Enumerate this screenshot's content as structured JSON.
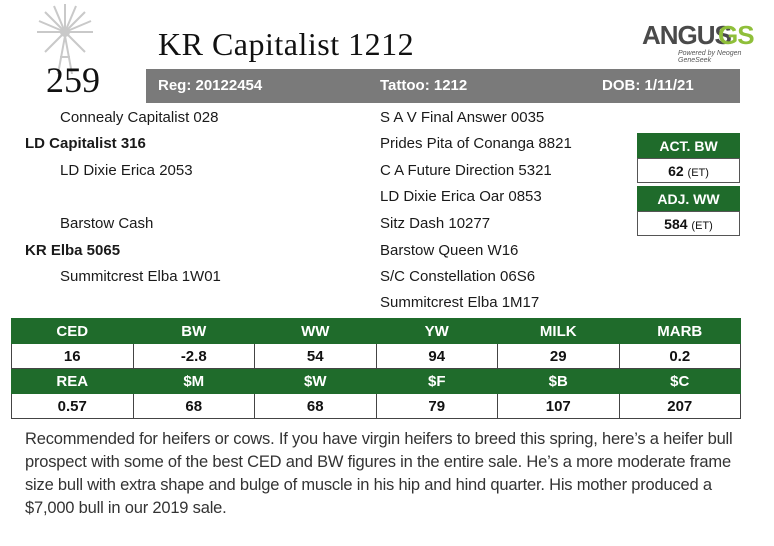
{
  "lot_number": "259",
  "title": "KR Capitalist 1212",
  "logo": {
    "word": "ANGUS",
    "suffix": "GS",
    "tagline": "Powered by Neogen GeneSeek"
  },
  "registration": {
    "reg": "Reg: 20122454",
    "tattoo": "Tattoo: 1212",
    "dob": "DOB: 1/11/21"
  },
  "pedigree_left": [
    "Connealy Capitalist 028",
    "LD Capitalist 316",
    "LD Dixie Erica 2053",
    "Barstow Cash",
    "KR Elba 5065",
    "Summitcrest Elba 1W01"
  ],
  "pedigree_right": [
    "S A V Final Answer 0035",
    "Prides Pita of Conanga 8821",
    "C A Future Direction 5321",
    "LD Dixie Erica Oar 0853",
    "Sitz Dash 10277",
    "Barstow Queen W16",
    "S/C Constellation 06S6",
    "Summitcrest Elba 1M17"
  ],
  "stats": {
    "act_bw_label": "ACT. BW",
    "act_bw_value": "62",
    "act_bw_note": "(ET)",
    "adj_ww_label": "ADJ. WW",
    "adj_ww_value": "584",
    "adj_ww_note": "(ET)"
  },
  "epd_row1": {
    "headers": [
      "CED",
      "BW",
      "WW",
      "YW",
      "MILK",
      "MARB"
    ],
    "values": [
      "16",
      "-2.8",
      "54",
      "94",
      "29",
      "0.2"
    ]
  },
  "epd_row2": {
    "headers": [
      "REA",
      "$M",
      "$W",
      "$F",
      "$B",
      "$C"
    ],
    "values": [
      "0.57",
      "68",
      "68",
      "79",
      "107",
      "207"
    ]
  },
  "description": "Recommended for heifers or cows. If you have virgin heifers to breed this spring, here’s a heifer bull prospect with some of the best CED and BW figures in the entire sale. He’s a more moderate frame size bull with extra shape and bulge of muscle in his hip and hind quarter. His mother produced a $7,000 bull in our 2019 sale.",
  "colors": {
    "green": "#1f6b2b",
    "grey_bar": "#7a7a7a",
    "logo_green": "#8fbf3a"
  }
}
